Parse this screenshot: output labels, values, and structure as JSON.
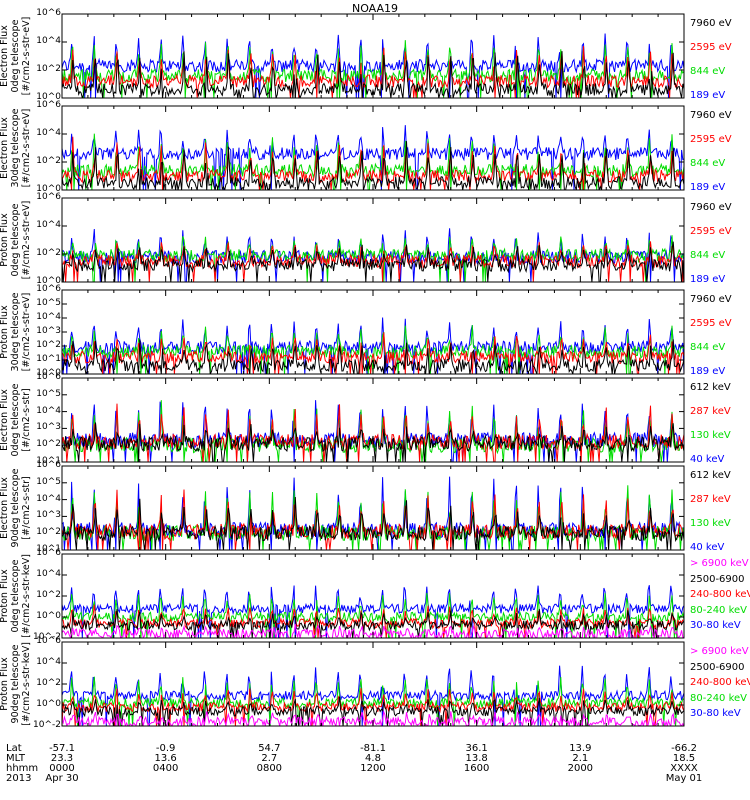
{
  "title": "NOAA19",
  "chart_data": [
    {
      "type": "line",
      "instrument": "TED",
      "ylabel_lines": [
        "TED",
        "Electron Flux",
        "0deg telescope",
        "[#/cm2-s-str-eV]"
      ],
      "yscale": "log",
      "ylim_exp": [
        0,
        6
      ],
      "ytick_labels": [
        "10^0",
        "10^2",
        "10^4",
        "10^6"
      ],
      "series": [
        {
          "name": "7960 eV",
          "color": "#000000",
          "base_exp": 0.6,
          "peak_exp": 3.6
        },
        {
          "name": "2595 eV",
          "color": "#ff0000",
          "base_exp": 1.2,
          "peak_exp": 3.9
        },
        {
          "name": "844 eV",
          "color": "#00dd00",
          "base_exp": 1.6,
          "peak_exp": 4.2
        },
        {
          "name": "189 eV",
          "color": "#0000ff",
          "base_exp": 2.3,
          "peak_exp": 4.8
        }
      ]
    },
    {
      "type": "line",
      "instrument": "TED",
      "ylabel_lines": [
        "TED",
        "Electron Flux",
        "30deg telescope",
        "[#/cm2-s-str-eV]"
      ],
      "yscale": "log",
      "ylim_exp": [
        0,
        6
      ],
      "ytick_labels": [
        "10^0",
        "10^2",
        "10^4",
        "10^6"
      ],
      "series": [
        {
          "name": "7960 eV",
          "color": "#000000",
          "base_exp": 0.5,
          "peak_exp": 3.4
        },
        {
          "name": "2595 eV",
          "color": "#ff0000",
          "base_exp": 1.0,
          "peak_exp": 3.7
        },
        {
          "name": "844 eV",
          "color": "#00dd00",
          "base_exp": 1.4,
          "peak_exp": 4.0
        },
        {
          "name": "189 eV",
          "color": "#0000ff",
          "base_exp": 2.6,
          "peak_exp": 4.6
        }
      ]
    },
    {
      "type": "line",
      "instrument": "TED",
      "ylabel_lines": [
        "TED",
        "Proton Flux",
        "0deg telescope",
        "[#/cm2-s-str-eV]"
      ],
      "yscale": "log",
      "ylim_exp": [
        0,
        6
      ],
      "ytick_labels": [
        "10^0",
        "10^2",
        "10^4",
        "10^6"
      ],
      "series": [
        {
          "name": "7960 eV",
          "color": "#000000",
          "base_exp": 1.2,
          "peak_exp": 2.8
        },
        {
          "name": "2595 eV",
          "color": "#ff0000",
          "base_exp": 1.5,
          "peak_exp": 3.0
        },
        {
          "name": "844 eV",
          "color": "#00dd00",
          "base_exp": 1.9,
          "peak_exp": 3.4
        },
        {
          "name": "189 eV",
          "color": "#0000ff",
          "base_exp": 1.8,
          "peak_exp": 3.8
        }
      ]
    },
    {
      "type": "line",
      "instrument": "TED",
      "ylabel_lines": [
        "TED",
        "Proton Flux",
        "30deg telescope",
        "[#/cm2-s-str-eV]"
      ],
      "yscale": "log",
      "ylim_exp": [
        0,
        6
      ],
      "ytick_labels": [
        "10^0",
        "10^1",
        "10^2",
        "10^3",
        "10^4",
        "10^5",
        "10^6"
      ],
      "series": [
        {
          "name": "7960 eV",
          "color": "#000000",
          "base_exp": 0.6,
          "peak_exp": 2.6
        },
        {
          "name": "2595 eV",
          "color": "#ff0000",
          "base_exp": 1.2,
          "peak_exp": 3.0
        },
        {
          "name": "844 eV",
          "color": "#00dd00",
          "base_exp": 1.6,
          "peak_exp": 3.4
        },
        {
          "name": "189 eV",
          "color": "#0000ff",
          "base_exp": 1.9,
          "peak_exp": 4.0
        }
      ]
    },
    {
      "type": "line",
      "instrument": "MEPED",
      "ylabel_lines": [
        "MEPED",
        "Electron Flux",
        "0deg telescope",
        "[#/cm2-s-str]"
      ],
      "yscale": "log",
      "ylim_exp": [
        1,
        6
      ],
      "ytick_labels": [
        "10^1",
        "10^2",
        "10^3",
        "10^4",
        "10^5",
        "10^6"
      ],
      "series": [
        {
          "name": "612 keV",
          "color": "#000000",
          "base_exp": 2.1,
          "peak_exp": 3.2
        },
        {
          "name": "287 keV",
          "color": "#ff0000",
          "base_exp": 2.2,
          "peak_exp": 4.4
        },
        {
          "name": "130 keV",
          "color": "#00dd00",
          "base_exp": 2.0,
          "peak_exp": 4.6
        },
        {
          "name": "40 keV",
          "color": "#0000ff",
          "base_exp": 2.3,
          "peak_exp": 5.0
        }
      ]
    },
    {
      "type": "line",
      "instrument": "MEPED",
      "ylabel_lines": [
        "MEPED",
        "Electron Flux",
        "90deg telescope",
        "[#/cm2-s-str]"
      ],
      "yscale": "log",
      "ylim_exp": [
        1,
        6
      ],
      "ytick_labels": [
        "10^1",
        "10^2",
        "10^3",
        "10^4",
        "10^5",
        "10^6"
      ],
      "series": [
        {
          "name": "612 keV",
          "color": "#000000",
          "base_exp": 2.0,
          "peak_exp": 4.0
        },
        {
          "name": "287 keV",
          "color": "#ff0000",
          "base_exp": 2.1,
          "peak_exp": 4.6
        },
        {
          "name": "130 keV",
          "color": "#00dd00",
          "base_exp": 2.0,
          "peak_exp": 4.8
        },
        {
          "name": "40 keV",
          "color": "#0000ff",
          "base_exp": 2.2,
          "peak_exp": 5.4
        }
      ]
    },
    {
      "type": "line",
      "instrument": "MEPED",
      "ylabel_lines": [
        "MEPED",
        "Proton Flux",
        "0deg telescope",
        "[#/cm2-s-str-keV]"
      ],
      "yscale": "log",
      "ylim_exp": [
        -2,
        6
      ],
      "ytick_labels": [
        "10^-2",
        "10^0",
        "10^2",
        "10^4",
        "10^6"
      ],
      "series": [
        {
          "name": "> 6900 keV",
          "color": "#ff00ff",
          "base_exp": -1.6,
          "peak_exp": -0.8
        },
        {
          "name": "2500-6900",
          "color": "#000000",
          "base_exp": -0.8,
          "peak_exp": 0.6
        },
        {
          "name": "240-800 keV",
          "color": "#ff0000",
          "base_exp": -0.6,
          "peak_exp": 1.2
        },
        {
          "name": "80-240 keV",
          "color": "#00dd00",
          "base_exp": 0.0,
          "peak_exp": 2.4
        },
        {
          "name": "30-80 keV",
          "color": "#0000ff",
          "base_exp": 0.8,
          "peak_exp": 3.4
        }
      ]
    },
    {
      "type": "line",
      "instrument": "MEPED",
      "ylabel_lines": [
        "MEPED",
        "Proton Flux",
        "90deg telescope",
        "[#/cm2-s-str-keV]"
      ],
      "yscale": "log",
      "ylim_exp": [
        -2,
        6
      ],
      "ytick_labels": [
        "10^-2",
        "10^0",
        "10^2",
        "10^4",
        "10^6"
      ],
      "series": [
        {
          "name": "> 6900 keV",
          "color": "#ff00ff",
          "base_exp": -1.6,
          "peak_exp": -0.6
        },
        {
          "name": "2500-6900",
          "color": "#000000",
          "base_exp": -0.6,
          "peak_exp": 0.8
        },
        {
          "name": "240-800 keV",
          "color": "#ff0000",
          "base_exp": -0.2,
          "peak_exp": 1.6
        },
        {
          "name": "80-240 keV",
          "color": "#00dd00",
          "base_exp": 0.2,
          "peak_exp": 3.0
        },
        {
          "name": "30-80 keV",
          "color": "#0000ff",
          "base_exp": 0.9,
          "peak_exp": 4.0
        }
      ]
    }
  ],
  "x_axis": {
    "time_ticks": [
      "0000",
      "0400",
      "0800",
      "1200",
      "1600",
      "2000",
      "XXXX"
    ],
    "row_headers": [
      "Lat",
      "MLT",
      "hhmm",
      "2013"
    ],
    "lat": [
      "-57.1",
      "-0.9",
      "54.7",
      "-81.1",
      "36.1",
      "13.9",
      "-66.2"
    ],
    "mlt": [
      "23.3",
      "13.6",
      "2.7",
      "4.8",
      "13.8",
      "2.1",
      "18.5"
    ],
    "dates": [
      "Apr 30",
      "May 01"
    ]
  }
}
